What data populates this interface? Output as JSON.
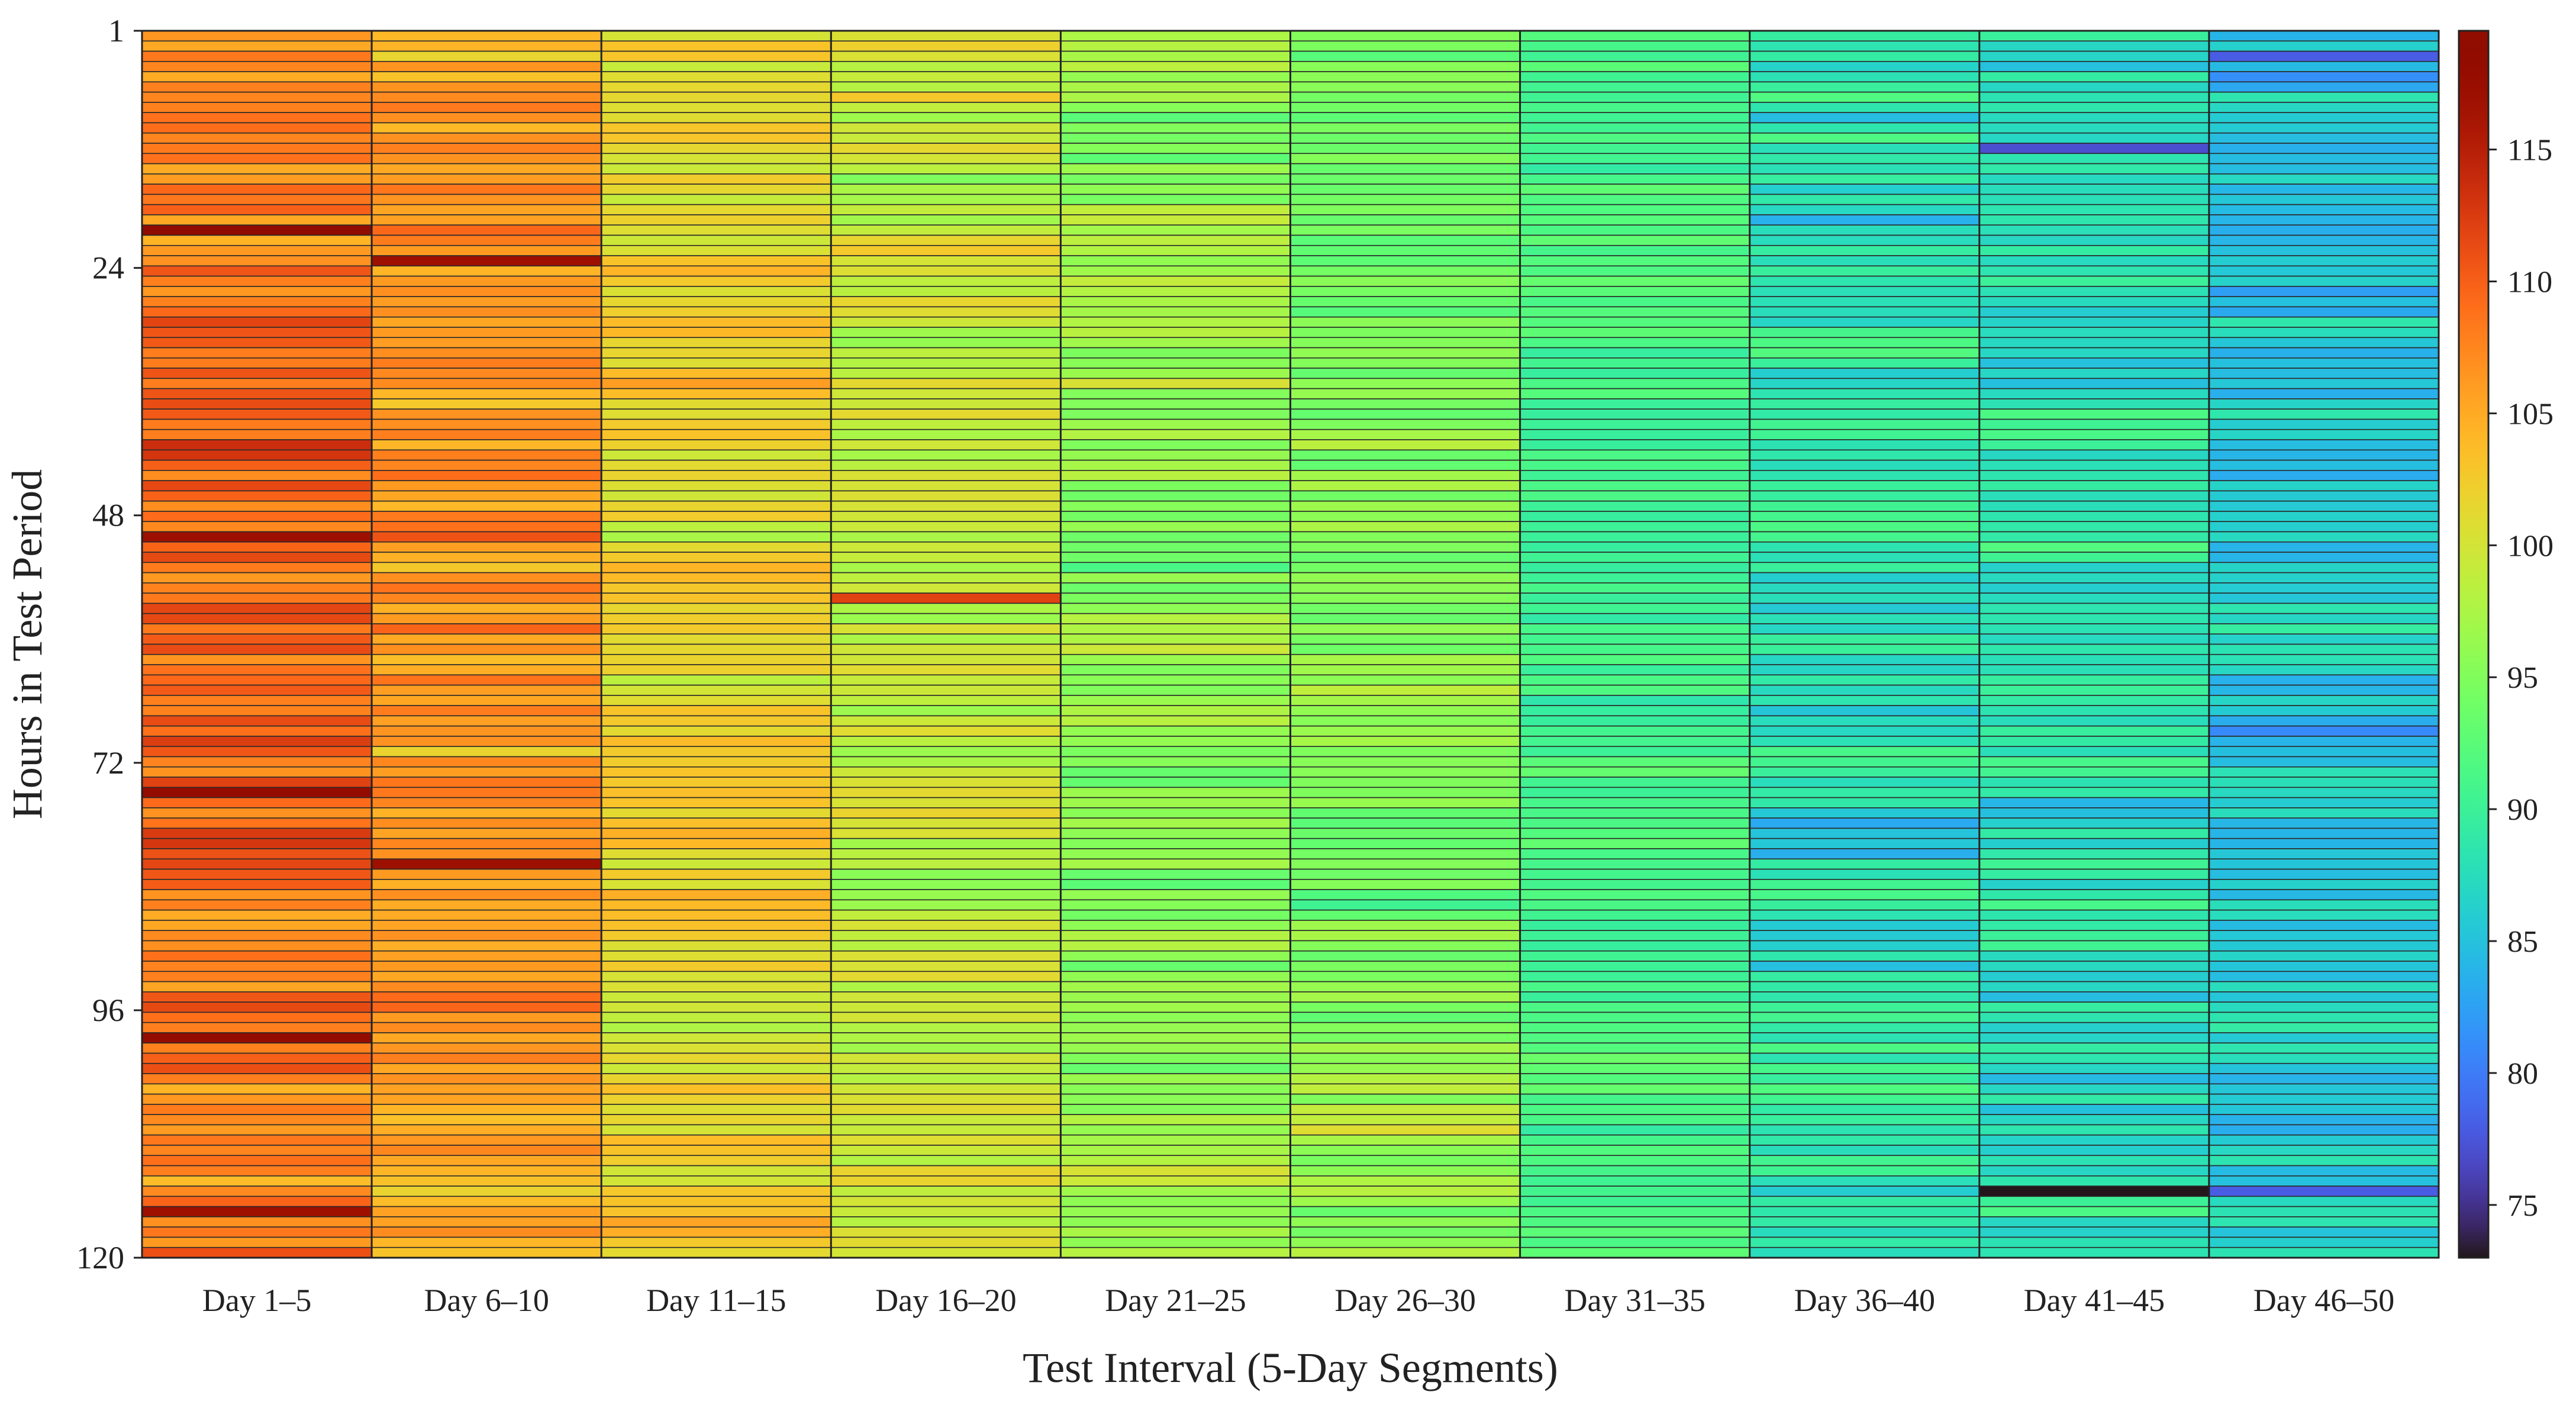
{
  "chart_data": {
    "type": "heatmap",
    "title": "",
    "xlabel": "Test Interval (5-Day Segments)",
    "ylabel": "Hours in Test Period",
    "categories": [
      "Day 1–5",
      "Day 6–10",
      "Day 11–15",
      "Day 16–20",
      "Day 21–25",
      "Day 26–30",
      "Day 31–35",
      "Day 36–40",
      "Day 41–45",
      "Day 46–50"
    ],
    "hours": {
      "start": 1,
      "end": 120
    },
    "y_ticks": [
      1,
      24,
      48,
      72,
      96,
      120
    ],
    "colorbar": {
      "min": 73,
      "max": 119.5,
      "ticks": [
        75,
        80,
        85,
        90,
        95,
        100,
        105,
        110,
        115
      ],
      "colormap": "turbo"
    },
    "column_means": [
      109,
      106,
      102,
      99,
      96,
      95,
      91,
      88,
      88,
      86
    ],
    "column_spread": [
      5,
      5,
      4,
      4,
      4,
      4,
      3,
      4,
      4,
      4
    ],
    "noted_cells": [
      {
        "column": 0,
        "hour": 20,
        "value": 119
      },
      {
        "column": 0,
        "hour": 50,
        "value": 117
      },
      {
        "column": 0,
        "hour": 75,
        "value": 118
      },
      {
        "column": 0,
        "hour": 99,
        "value": 118
      },
      {
        "column": 0,
        "hour": 116,
        "value": 117
      },
      {
        "column": 1,
        "hour": 23,
        "value": 117
      },
      {
        "column": 1,
        "hour": 82,
        "value": 117
      },
      {
        "column": 3,
        "hour": 56,
        "value": 112
      },
      {
        "column": 8,
        "hour": 12,
        "value": 77
      },
      {
        "column": 8,
        "hour": 114,
        "value": 73
      },
      {
        "column": 9,
        "hour": 3,
        "value": 78
      },
      {
        "column": 9,
        "hour": 114,
        "value": 78
      }
    ]
  }
}
